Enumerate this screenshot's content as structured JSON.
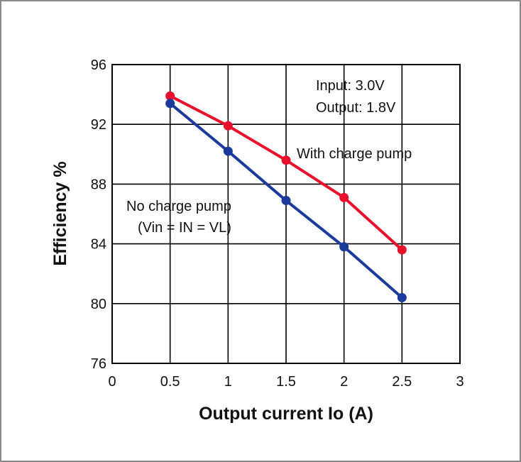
{
  "chart_data": {
    "type": "line",
    "xlabel": "Output current Io (A)",
    "ylabel": "Efficiency %",
    "xlim": [
      0,
      3
    ],
    "ylim": [
      76,
      96
    ],
    "xticks": [
      "0",
      "0.5",
      "1",
      "1.5",
      "2",
      "2.5",
      "3"
    ],
    "yticks": [
      "76",
      "80",
      "84",
      "88",
      "92",
      "96"
    ],
    "grid": true,
    "series": [
      {
        "name": "With charge pump",
        "color": "#e8102a",
        "x": [
          0.5,
          1,
          1.5,
          2,
          2.5
        ],
        "y": [
          93.9,
          91.9,
          89.6,
          87.1,
          83.6
        ]
      },
      {
        "name": "No charge pump",
        "color": "#1a3a9c",
        "x": [
          0.5,
          1,
          1.5,
          2,
          2.5
        ],
        "y": [
          93.4,
          90.2,
          86.9,
          83.8,
          80.4
        ]
      }
    ],
    "annotations": {
      "conditions": [
        "Input: 3.0V",
        "Output: 1.8V"
      ],
      "with_pump_label": "With charge pump",
      "no_pump_label": [
        "No charge pump",
        "(Vin = IN = VL)"
      ]
    }
  }
}
